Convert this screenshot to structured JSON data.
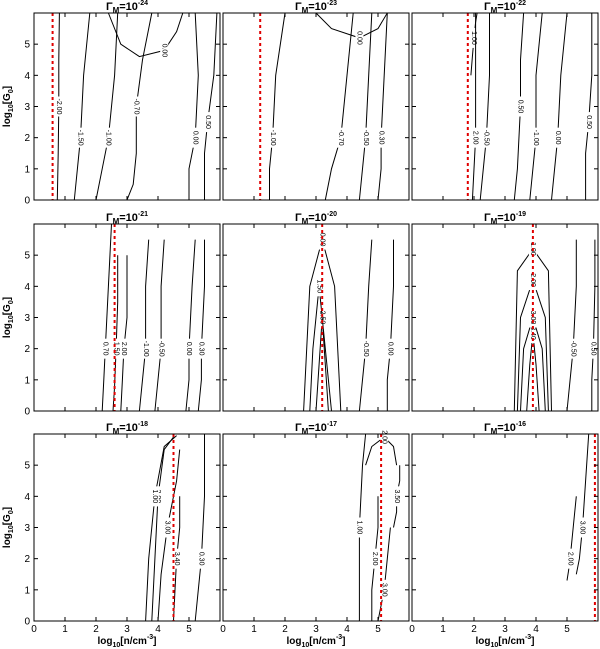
{
  "chart_data": {
    "type": "contour",
    "title_symbol": "Γ",
    "title_subscript": "M",
    "title_base": "=10",
    "xlabel": [
      "log",
      "10",
      "[n/cm",
      "-3",
      "]"
    ],
    "ylabel": [
      "log",
      "10",
      "[G",
      "0",
      "]"
    ],
    "xlim": [
      0,
      6
    ],
    "ylim": [
      0,
      6
    ],
    "xticks": [
      0,
      1,
      2,
      3,
      4,
      5
    ],
    "yticks": [
      0,
      1,
      2,
      3,
      4,
      5
    ],
    "contour_color": "#000000",
    "critical_color": "#e00000",
    "panels": [
      {
        "exponent": -24,
        "critical_x": 0.6,
        "contours": [
          {
            "level": {
              "value": -2,
              "label": "-2.00"
            },
            "x": [
              0.75,
              0.78,
              0.8,
              0.8,
              0.82
            ],
            "y": [
              0,
              1.5,
              3,
              4.5,
              6
            ]
          },
          {
            "level": {
              "value": -1.5,
              "label": "-1.50"
            },
            "x": [
              1.3,
              1.4,
              1.5,
              1.6,
              1.8
            ],
            "y": [
              0,
              1,
              2,
              4,
              6
            ]
          },
          {
            "level": {
              "value": -1,
              "label": "-1.00"
            },
            "x": [
              2.0,
              2.2,
              2.4,
              2.6,
              2.7
            ],
            "y": [
              0,
              1,
              2,
              4,
              6
            ]
          },
          {
            "level": {
              "value": -0.7,
              "label": "-0.70"
            },
            "x": [
              3.0,
              3.2,
              3.3,
              3.3,
              3.5,
              3.8
            ],
            "y": [
              0,
              0.5,
              1.5,
              3,
              4.5,
              6
            ]
          },
          {
            "level": {
              "value": 0,
              "label": "0.00"
            },
            "x": [
              2.4,
              2.8,
              3.4,
              4.2,
              4.6,
              4.8
            ],
            "y": [
              6,
              5.0,
              4.6,
              4.8,
              5.4,
              6
            ]
          },
          {
            "level": {
              "value": 0,
              "label": "0.00"
            },
            "x": [
              5.0,
              5.0,
              5.2,
              5.3,
              5.2
            ],
            "y": [
              0,
              1,
              2,
              4,
              6
            ]
          },
          {
            "level": {
              "value": 0.5,
              "label": "0.50"
            },
            "x": [
              5.5,
              5.5,
              5.6,
              5.8,
              5.9
            ],
            "y": [
              0,
              1.5,
              2.5,
              4,
              6
            ]
          }
        ]
      },
      {
        "exponent": -23,
        "critical_x": 1.2,
        "contours": [
          {
            "level": {
              "value": -1,
              "label": "-1.00"
            },
            "x": [
              1.5,
              1.5,
              1.6,
              1.7,
              2.0
            ],
            "y": [
              0,
              1,
              2,
              4,
              6
            ]
          },
          {
            "level": {
              "value": -0.7,
              "label": "-0.70"
            },
            "x": [
              3.3,
              3.5,
              3.8,
              4.0,
              4.2
            ],
            "y": [
              0,
              1,
              2,
              4,
              6
            ]
          },
          {
            "level": {
              "value": 0,
              "label": "0.00"
            },
            "x": [
              3.0,
              3.5,
              4.4,
              5.0,
              5.3
            ],
            "y": [
              6,
              5.5,
              5.2,
              5.5,
              6
            ]
          },
          {
            "level": {
              "value": -0.5,
              "label": "-0.50"
            },
            "x": [
              4.4,
              4.5,
              4.6,
              4.7,
              4.8
            ],
            "y": [
              0,
              1,
              2,
              4,
              6
            ]
          },
          {
            "level": {
              "value": 0.3,
              "label": "0.30"
            },
            "x": [
              5.0,
              5.1,
              5.1,
              5.2,
              5.3
            ],
            "y": [
              0,
              1,
              2,
              4,
              6
            ]
          }
        ]
      },
      {
        "exponent": -22,
        "critical_x": 1.8,
        "contours": [
          {
            "level": {
              "value": 1,
              "label": "1.00"
            },
            "x": [
              1.9,
              1.95,
              2.0,
              2.05,
              2.1
            ],
            "y": [
              4,
              4.6,
              5.2,
              5.7,
              6
            ]
          },
          {
            "level": {
              "value": 2,
              "label": "2.00"
            },
            "x": [
              1.95,
              2.0,
              2.05,
              2.05,
              2.05
            ],
            "y": [
              0,
              1,
              2,
              4,
              6
            ]
          },
          {
            "level": {
              "value": -0.5,
              "label": "-0.50"
            },
            "x": [
              2.2,
              2.3,
              2.4,
              2.5,
              2.5
            ],
            "y": [
              0,
              1,
              2,
              4,
              6
            ]
          },
          {
            "level": {
              "value": 0.5,
              "label": "0.50"
            },
            "x": [
              3.3,
              3.4,
              3.5,
              3.5,
              3.6
            ],
            "y": [
              0,
              1,
              3,
              4.5,
              6
            ]
          },
          {
            "level": {
              "value": -1,
              "label": "-1.00"
            },
            "x": [
              3.8,
              3.9,
              4.0,
              4.0,
              4.2
            ],
            "y": [
              0,
              1,
              2,
              4,
              6
            ]
          },
          {
            "level": {
              "value": 0,
              "label": "0.00"
            },
            "x": [
              4.5,
              4.6,
              4.7,
              4.8,
              5.0
            ],
            "y": [
              0,
              1,
              2,
              4,
              6
            ]
          },
          {
            "level": {
              "value": 0.5,
              "label": "0.50"
            },
            "x": [
              5.6,
              5.6,
              5.7,
              5.8,
              5.8
            ],
            "y": [
              0,
              1.5,
              2.5,
              4,
              6
            ]
          }
        ]
      },
      {
        "exponent": -21,
        "critical_x": 2.6,
        "contours": [
          {
            "level": {
              "value": 0.7,
              "label": "0.70"
            },
            "x": [
              2.2,
              2.25,
              2.3,
              2.4,
              2.5
            ],
            "y": [
              0,
              1,
              2,
              4,
              6
            ]
          },
          {
            "level": {
              "value": 1.5,
              "label": "1.50"
            },
            "x": [
              2.55,
              2.6,
              2.65,
              2.7,
              2.7
            ],
            "y": [
              0,
              0.8,
              2,
              3.5,
              5
            ]
          },
          {
            "level": {
              "value": 2,
              "label": "2.00"
            },
            "x": [
              2.8,
              2.85,
              2.9,
              3.0,
              3.0
            ],
            "y": [
              0,
              1,
              2,
              3,
              5
            ]
          },
          {
            "level": {
              "value": -1,
              "label": "-1.00"
            },
            "x": [
              3.4,
              3.5,
              3.6,
              3.6,
              3.7
            ],
            "y": [
              0,
              1,
              2,
              4,
              5.5
            ]
          },
          {
            "level": {
              "value": -0.5,
              "label": "-0.50"
            },
            "x": [
              3.9,
              4.0,
              4.1,
              4.1,
              4.2
            ],
            "y": [
              0,
              1,
              2,
              4,
              5.5
            ]
          },
          {
            "level": {
              "value": 0,
              "label": "0.00"
            },
            "x": [
              4.9,
              5.0,
              5.0,
              5.1,
              5.2
            ],
            "y": [
              0,
              1,
              2,
              4,
              5.5
            ]
          },
          {
            "level": {
              "value": 0.3,
              "label": "0.30"
            },
            "x": [
              5.3,
              5.4,
              5.4,
              5.5,
              5.5
            ],
            "y": [
              0,
              1,
              2,
              4,
              5.5
            ]
          }
        ]
      },
      {
        "exponent": -20,
        "critical_x": 3.2,
        "contours": [
          {
            "level": {
              "value": 2.5,
              "label": "2.50"
            },
            "x": [
              3.0,
              3.1,
              3.2,
              3.3,
              3.4
            ],
            "y": [
              0,
              1.5,
              3,
              1.5,
              0
            ]
          },
          {
            "level": {
              "value": 1.5,
              "label": "1.50"
            },
            "x": [
              2.8,
              2.9,
              3.1,
              3.3,
              3.5
            ],
            "y": [
              0,
              2,
              4,
              2,
              0
            ]
          },
          {
            "level": {
              "value": 0,
              "label": "0.00"
            },
            "x": [
              2.6,
              2.8,
              3.2,
              3.6,
              3.8
            ],
            "y": [
              0,
              4,
              5.5,
              4,
              0
            ]
          },
          {
            "level": {
              "value": -0.5,
              "label": "-0.50"
            },
            "x": [
              4.4,
              4.5,
              4.6,
              4.7,
              4.8
            ],
            "y": [
              0,
              1,
              2,
              4,
              5.5
            ]
          },
          {
            "level": {
              "value": 0,
              "label": "0.00"
            },
            "x": [
              5.3,
              5.3,
              5.4,
              5.5,
              5.5
            ],
            "y": [
              0,
              1,
              2,
              4,
              5.5
            ]
          }
        ]
      },
      {
        "exponent": -19,
        "critical_x": 3.9,
        "contours": [
          {
            "level": {
              "value": 3.4,
              "label": "3.40"
            },
            "x": [
              3.7,
              3.8,
              3.9,
              4.0,
              4.1
            ],
            "y": [
              0,
              1.5,
              2.5,
              1.5,
              0
            ]
          },
          {
            "level": {
              "value": 3,
              "label": "3.00"
            },
            "x": [
              3.5,
              3.6,
              3.9,
              4.2,
              4.3
            ],
            "y": [
              0,
              2,
              3,
              2,
              0
            ]
          },
          {
            "level": {
              "value": 2,
              "label": "2.00"
            },
            "x": [
              3.4,
              3.5,
              3.9,
              4.3,
              4.4
            ],
            "y": [
              0,
              3,
              4.2,
              3,
              0
            ]
          },
          {
            "level": {
              "value": 1,
              "label": "1.00"
            },
            "x": [
              3.3,
              3.4,
              3.9,
              4.4,
              4.5
            ],
            "y": [
              0,
              4.5,
              5.2,
              4.5,
              0
            ]
          },
          {
            "level": {
              "value": -0.5,
              "label": "-0.50"
            },
            "x": [
              5.0,
              5.1,
              5.2,
              5.3,
              5.3
            ],
            "y": [
              0,
              1,
              2,
              4,
              5.5
            ]
          },
          {
            "level": {
              "value": 0.5,
              "label": "0.50"
            },
            "x": [
              5.8,
              5.8,
              5.85,
              5.9,
              5.9
            ],
            "y": [
              0,
              1,
              2,
              4,
              5.5
            ]
          }
        ]
      },
      {
        "exponent": -18,
        "critical_x": 4.5,
        "contours": [
          {
            "level": {
              "value": 3.4,
              "label": "3.40"
            },
            "x": [
              4.5,
              4.55,
              4.6,
              4.7,
              4.7
            ],
            "y": [
              0,
              1,
              2,
              3,
              4
            ]
          },
          {
            "level": {
              "value": 3,
              "label": "3.00"
            },
            "x": [
              4.0,
              4.1,
              4.3,
              4.6,
              4.7
            ],
            "y": [
              0,
              1.5,
              3,
              4.5,
              5.5
            ]
          },
          {
            "level": {
              "value": 2,
              "label": "2.00"
            },
            "x": [
              3.8,
              3.9,
              4.0,
              4.2,
              4.5
            ],
            "y": [
              0,
              2,
              4,
              5.5,
              5.9
            ]
          },
          {
            "level": {
              "value": 1,
              "label": "1.00"
            },
            "x": [
              3.6,
              3.7,
              3.9,
              4.2,
              4.6
            ],
            "y": [
              0,
              2,
              4,
              5.6,
              5.95
            ]
          },
          {
            "level": {
              "value": 0.3,
              "label": "0.30"
            },
            "x": [
              5.2,
              5.3,
              5.4,
              5.5,
              5.5
            ],
            "y": [
              0,
              1,
              2,
              4,
              6
            ]
          }
        ]
      },
      {
        "exponent": -17,
        "critical_x": 5.1,
        "contours": [
          {
            "level": {
              "value": 1,
              "label": "1.00"
            },
            "x": [
              4.4,
              4.4,
              4.4,
              4.5,
              4.6
            ],
            "y": [
              0,
              1,
              3,
              5,
              6
            ]
          },
          {
            "level": {
              "value": 2,
              "label": "2.00"
            },
            "x": [
              4.8,
              4.8,
              4.9,
              5.0,
              5.0
            ],
            "y": [
              0,
              1,
              2,
              3,
              4
            ]
          },
          {
            "level": {
              "value": 3,
              "label": "3.00"
            },
            "x": [
              5.0,
              5.1,
              5.2,
              5.3,
              5.4
            ],
            "y": [
              0,
              0.5,
              1,
              2,
              3
            ]
          },
          {
            "level": {
              "value": 3.5,
              "label": "3.50"
            },
            "x": [
              5.5,
              5.6,
              5.6,
              5.7,
              5.7
            ],
            "y": [
              3,
              3.5,
              4,
              4.5,
              5
            ]
          },
          {
            "level": {
              "value": 2,
              "label": "2.00"
            },
            "x": [
              4.6,
              4.8,
              5.2,
              5.5,
              5.6
            ],
            "y": [
              5,
              5.6,
              5.9,
              5.6,
              5
            ]
          }
        ]
      },
      {
        "exponent": -16,
        "critical_x": 5.9,
        "contours": [
          {
            "level": {
              "value": 2,
              "label": "2.00"
            },
            "x": [
              5.0,
              5.05,
              5.1,
              5.2,
              5.3
            ],
            "y": [
              1.3,
              1.6,
              2,
              3,
              4
            ]
          },
          {
            "level": {
              "value": 3,
              "label": "3.00"
            },
            "x": [
              5.3,
              5.4,
              5.5,
              5.6,
              5.7
            ],
            "y": [
              1.5,
              2,
              3,
              4.5,
              6
            ]
          }
        ]
      }
    ]
  }
}
